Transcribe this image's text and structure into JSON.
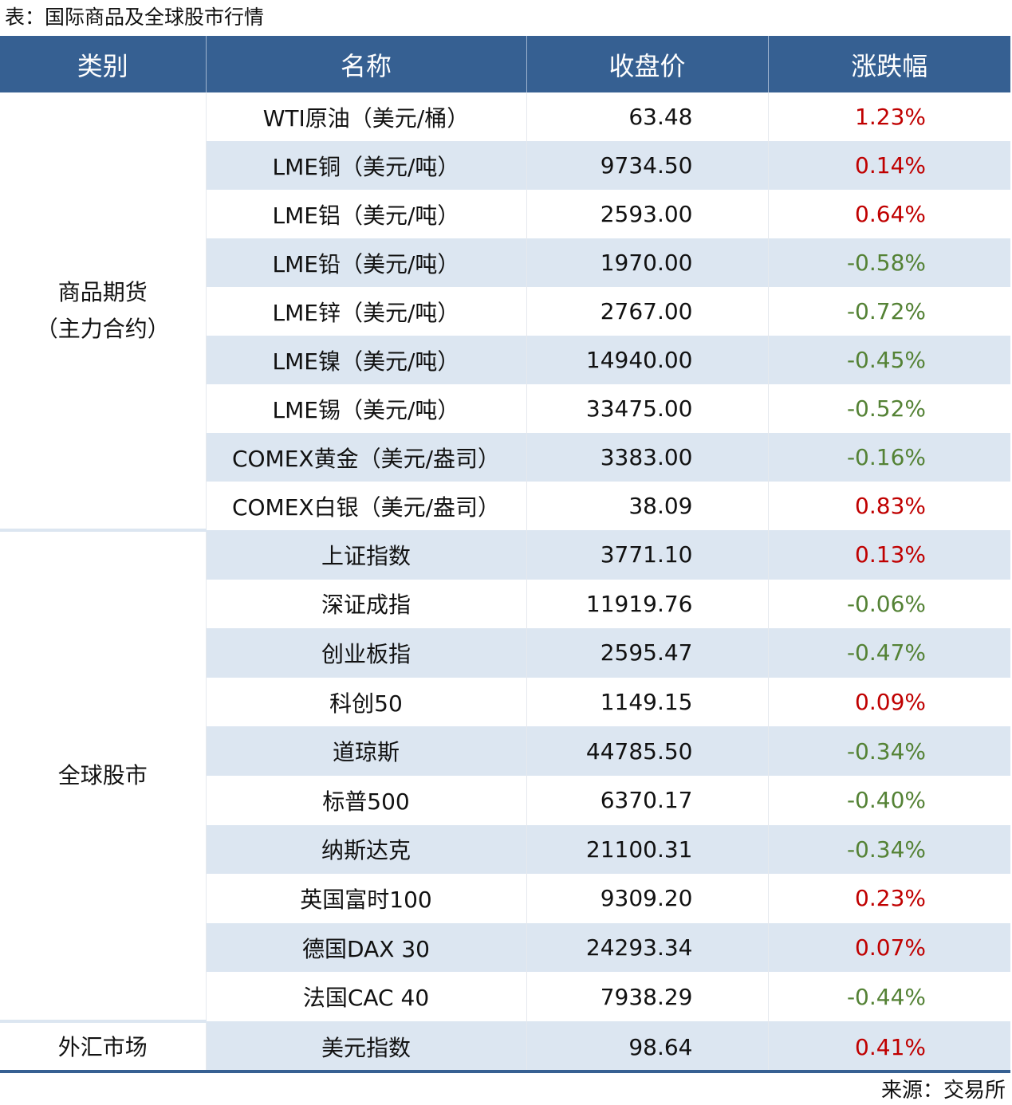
{
  "title": "表：国际商品及全球股市行情",
  "headers": [
    "类别",
    "名称",
    "收盘价",
    "涨跌幅"
  ],
  "colors": {
    "header": "#366092",
    "stripe": "#dce6f1",
    "up": "#c00000",
    "down": "#548235"
  },
  "groups": [
    {
      "category": [
        "商品期货",
        "（主力合约）"
      ],
      "rows": [
        {
          "name": "WTI原油（美元/桶）",
          "price": "63.48",
          "change": "1.23%"
        },
        {
          "name": "LME铜（美元/吨）",
          "price": "9734.50",
          "change": "0.14%"
        },
        {
          "name": "LME铝（美元/吨）",
          "price": "2593.00",
          "change": "0.64%"
        },
        {
          "name": "LME铅（美元/吨）",
          "price": "1970.00",
          "change": "-0.58%"
        },
        {
          "name": "LME锌（美元/吨）",
          "price": "2767.00",
          "change": "-0.72%"
        },
        {
          "name": "LME镍（美元/吨）",
          "price": "14940.00",
          "change": "-0.45%"
        },
        {
          "name": "LME锡（美元/吨）",
          "price": "33475.00",
          "change": "-0.52%"
        },
        {
          "name": "COMEX黄金（美元/盎司）",
          "price": "3383.00",
          "change": "-0.16%"
        },
        {
          "name": "COMEX白银（美元/盎司）",
          "price": "38.09",
          "change": "0.83%"
        }
      ]
    },
    {
      "category": [
        "全球股市"
      ],
      "rows": [
        {
          "name": "上证指数",
          "price": "3771.10",
          "change": "0.13%"
        },
        {
          "name": "深证成指",
          "price": "11919.76",
          "change": "-0.06%"
        },
        {
          "name": "创业板指",
          "price": "2595.47",
          "change": "-0.47%"
        },
        {
          "name": "科创50",
          "price": "1149.15",
          "change": "0.09%"
        },
        {
          "name": "道琼斯",
          "price": "44785.50",
          "change": "-0.34%"
        },
        {
          "name": "标普500",
          "price": "6370.17",
          "change": "-0.40%"
        },
        {
          "name": "纳斯达克",
          "price": "21100.31",
          "change": "-0.34%"
        },
        {
          "name": "英国富时100",
          "price": "9309.20",
          "change": "0.23%"
        },
        {
          "name": "德国DAX 30",
          "price": "24293.34",
          "change": "0.07%"
        },
        {
          "name": "法国CAC 40",
          "price": "7938.29",
          "change": "-0.44%"
        }
      ]
    },
    {
      "category": [
        "外汇市场"
      ],
      "rows": [
        {
          "name": "美元指数",
          "price": "98.64",
          "change": "0.41%"
        }
      ]
    }
  ],
  "source": "来源：交易所"
}
